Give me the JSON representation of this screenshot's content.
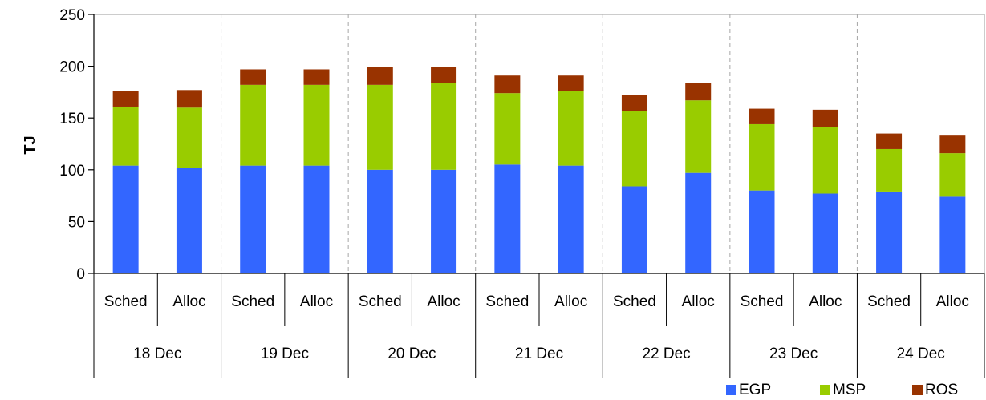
{
  "chart_data": {
    "type": "bar",
    "stacked": true,
    "title": "",
    "xlabel": "",
    "ylabel": "TJ",
    "ylim": [
      0,
      250
    ],
    "yticks": [
      0,
      50,
      100,
      150,
      200,
      250
    ],
    "grid": "vertical dashed separators between day groups",
    "legend_position": "bottom-right",
    "groups": [
      "18 Dec",
      "19 Dec",
      "20 Dec",
      "21 Dec",
      "22 Dec",
      "23 Dec",
      "24 Dec"
    ],
    "subcategories": [
      "Sched",
      "Alloc"
    ],
    "categories": [
      "18 Dec Sched",
      "18 Dec Alloc",
      "19 Dec Sched",
      "19 Dec Alloc",
      "20 Dec Sched",
      "20 Dec Alloc",
      "21 Dec Sched",
      "21 Dec Alloc",
      "22 Dec Sched",
      "22 Dec Alloc",
      "23 Dec Sched",
      "23 Dec Alloc",
      "24 Dec Sched",
      "24 Dec Alloc"
    ],
    "series": [
      {
        "name": "EGP",
        "color": "#3366ff",
        "values": [
          104,
          102,
          104,
          104,
          100,
          100,
          105,
          104,
          84,
          97,
          80,
          77,
          79,
          74
        ]
      },
      {
        "name": "MSP",
        "color": "#99cc00",
        "values": [
          57,
          58,
          78,
          78,
          82,
          84,
          69,
          72,
          73,
          70,
          64,
          64,
          41,
          42
        ]
      },
      {
        "name": "ROS",
        "color": "#993300",
        "values": [
          15,
          17,
          15,
          15,
          17,
          15,
          17,
          15,
          15,
          17,
          15,
          17,
          15,
          17
        ]
      }
    ]
  }
}
